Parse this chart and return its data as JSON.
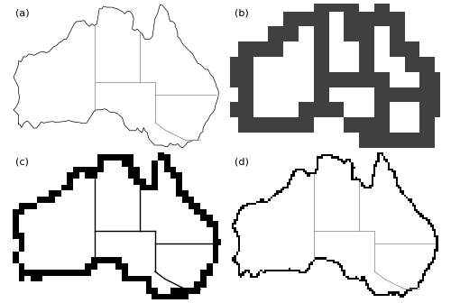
{
  "figure_size": [
    5.0,
    3.36
  ],
  "dpi": 100,
  "labels": [
    "(a)",
    "(b)",
    "(c)",
    "(d)"
  ],
  "xlim": [
    112.5,
    154.0
  ],
  "ylim": [
    -39.5,
    -10.5
  ],
  "state_border_color": "#808080",
  "coast_color_a": "#000000",
  "coast_color_d": "#000000",
  "blocky_color_b": "#404040",
  "blocky_color_c": "#000000",
  "step_b": 3.0,
  "step_c": 1.2,
  "step_d": 0.4
}
